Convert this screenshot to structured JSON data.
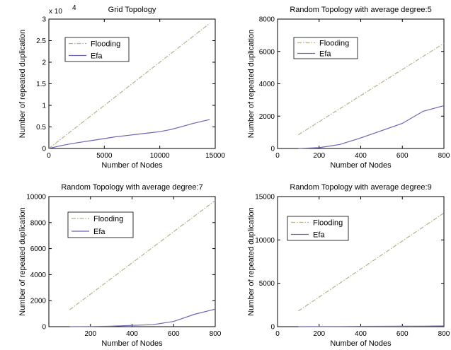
{
  "colors": {
    "flooding": "#b8b08a",
    "efa": "#6a65b8",
    "axis": "#000000"
  },
  "chart_data": [
    {
      "type": "line",
      "title": "Grid Topology",
      "xlabel": "Number of Nodes",
      "ylabel": "Number of repeated duplication",
      "xlim": [
        0,
        15000
      ],
      "ylim": [
        0,
        30000
      ],
      "xticks": [
        0,
        5000,
        10000,
        15000
      ],
      "yticks": [
        0,
        5000,
        10000,
        15000,
        20000,
        25000,
        30000
      ],
      "ytick_labels": [
        "0",
        "0.5",
        "1",
        "1.5",
        "2",
        "2.5",
        "3"
      ],
      "y_exponent_label": "x 10",
      "y_exponent_power": "4",
      "legend": "top-left",
      "series": [
        {
          "name": "Flooding",
          "style": "dashdot",
          "color": "flooding",
          "x": [
            0,
            14500
          ],
          "y": [
            0,
            29000
          ]
        },
        {
          "name": "Efa",
          "style": "solid",
          "color": "efa",
          "x": [
            0,
            1000,
            2000,
            3000,
            4000,
            5000,
            6000,
            7000,
            8000,
            9000,
            10000,
            11000,
            12000,
            13000,
            14500
          ],
          "y": [
            0,
            600,
            1100,
            1500,
            1900,
            2300,
            2700,
            3000,
            3300,
            3600,
            3900,
            4400,
            5100,
            5800,
            6700
          ]
        }
      ]
    },
    {
      "type": "line",
      "title": "Random Topology with average degree:5",
      "xlabel": "Number of Nodes",
      "ylabel": "Number of repeated duplication",
      "xlim": [
        0,
        800
      ],
      "ylim": [
        0,
        8000
      ],
      "xticks": [
        0,
        200,
        400,
        600,
        800
      ],
      "yticks": [
        0,
        2000,
        4000,
        6000,
        8000
      ],
      "legend": "top-left",
      "series": [
        {
          "name": "Flooding",
          "style": "dashdot",
          "color": "flooding",
          "x": [
            100,
            800
          ],
          "y": [
            850,
            6500
          ]
        },
        {
          "name": "Efa",
          "style": "solid",
          "color": "efa",
          "x": [
            100,
            200,
            300,
            400,
            500,
            600,
            700,
            800
          ],
          "y": [
            0,
            50,
            250,
            650,
            1100,
            1550,
            2300,
            2650
          ]
        }
      ]
    },
    {
      "type": "line",
      "title": "Random Topology with average degree:7",
      "xlabel": "Number of Nodes",
      "ylabel": "Number of repeated duplication",
      "xlim": [
        0,
        800
      ],
      "ylim": [
        0,
        10000
      ],
      "xticks": [
        200,
        400,
        600,
        800
      ],
      "yticks": [
        0,
        2000,
        4000,
        6000,
        8000,
        10000
      ],
      "legend": "top-left",
      "series": [
        {
          "name": "Flooding",
          "style": "dashdot",
          "color": "flooding",
          "x": [
            100,
            800
          ],
          "y": [
            1300,
            9700
          ]
        },
        {
          "name": "Efa",
          "style": "solid",
          "color": "efa",
          "x": [
            100,
            200,
            300,
            400,
            500,
            600,
            700,
            800
          ],
          "y": [
            0,
            10,
            40,
            100,
            150,
            400,
            950,
            1350
          ]
        }
      ]
    },
    {
      "type": "line",
      "title": "Random Topology with average degree:9",
      "xlabel": "Number of Nodes",
      "ylabel": "Number of repeated duplication",
      "xlim": [
        0,
        800
      ],
      "ylim": [
        0,
        15000
      ],
      "xticks": [
        0,
        200,
        400,
        600,
        800
      ],
      "yticks": [
        0,
        5000,
        10000,
        15000
      ],
      "legend": "top-left",
      "series": [
        {
          "name": "Flooding",
          "style": "dashdot",
          "color": "flooding",
          "x": [
            100,
            800
          ],
          "y": [
            1800,
            13100
          ]
        },
        {
          "name": "Efa",
          "style": "solid",
          "color": "efa",
          "x": [
            100,
            200,
            300,
            400,
            500,
            600,
            700,
            800
          ],
          "y": [
            0,
            10,
            20,
            30,
            40,
            50,
            60,
            80
          ]
        }
      ]
    }
  ]
}
